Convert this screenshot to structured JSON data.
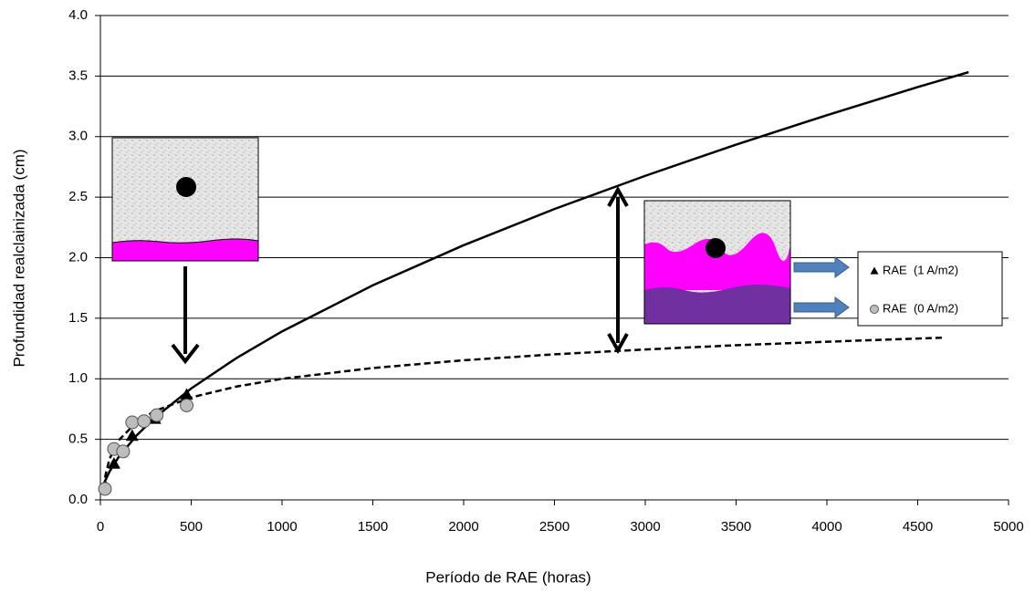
{
  "chart_data": {
    "type": "scatter",
    "xlabel": "Período de RAE (horas)",
    "ylabel": "Profundidad  realclainizada  (cm)",
    "xlim": [
      0,
      5000
    ],
    "xticks": [
      0,
      500,
      1000,
      1500,
      2000,
      2500,
      3000,
      3500,
      4000,
      4500,
      5000
    ],
    "ylim": [
      0,
      4
    ],
    "yticks": [
      {
        "value": 0,
        "label": "0.0"
      },
      0.5,
      {
        "value": 1,
        "label": "1.0"
      },
      1.5,
      {
        "value": 2,
        "label": "2.0"
      },
      2.5,
      {
        "value": 3,
        "label": "3.0"
      },
      3.5,
      {
        "value": 4,
        "label": "4.0"
      }
    ],
    "grid": true,
    "legend": "right",
    "series": [
      {
        "name": "RAE  (1 A/m2)",
        "marker": "triangle",
        "color": "#000000",
        "x": [
          25,
          75,
          175,
          300,
          475
        ],
        "values": [
          0.12,
          0.3,
          0.53,
          0.67,
          0.87
        ]
      },
      {
        "name": "RAE  (0 A/m2)",
        "marker": "circle",
        "color": "#bdbdbd",
        "x": [
          25,
          75,
          125,
          175,
          240,
          310,
          475
        ],
        "values": [
          0.09,
          0.42,
          0.4,
          0.64,
          0.65,
          0.7,
          0.78
        ]
      }
    ],
    "trendlines": [
      {
        "dash": false,
        "color": "#000000",
        "x": [
          25,
          50,
          100,
          200,
          300,
          500,
          750,
          1000,
          1500,
          2000,
          2500,
          3000,
          3500,
          4000,
          4500,
          4780
        ],
        "values": [
          0.154,
          0.233,
          0.353,
          0.533,
          0.679,
          0.92,
          1.172,
          1.391,
          1.772,
          2.103,
          2.402,
          2.676,
          2.934,
          3.177,
          3.409,
          3.532
        ]
      },
      {
        "dash": true,
        "color": "#000000",
        "x": [
          25,
          50,
          100,
          200,
          300,
          500,
          750,
          1000,
          1500,
          2000,
          2500,
          3000,
          3500,
          4000,
          4650
        ],
        "values": [
          0.184,
          0.338,
          0.491,
          0.644,
          0.734,
          0.846,
          0.936,
          1.0,
          1.089,
          1.153,
          1.202,
          1.242,
          1.277,
          1.306,
          1.34
        ]
      }
    ]
  }
}
